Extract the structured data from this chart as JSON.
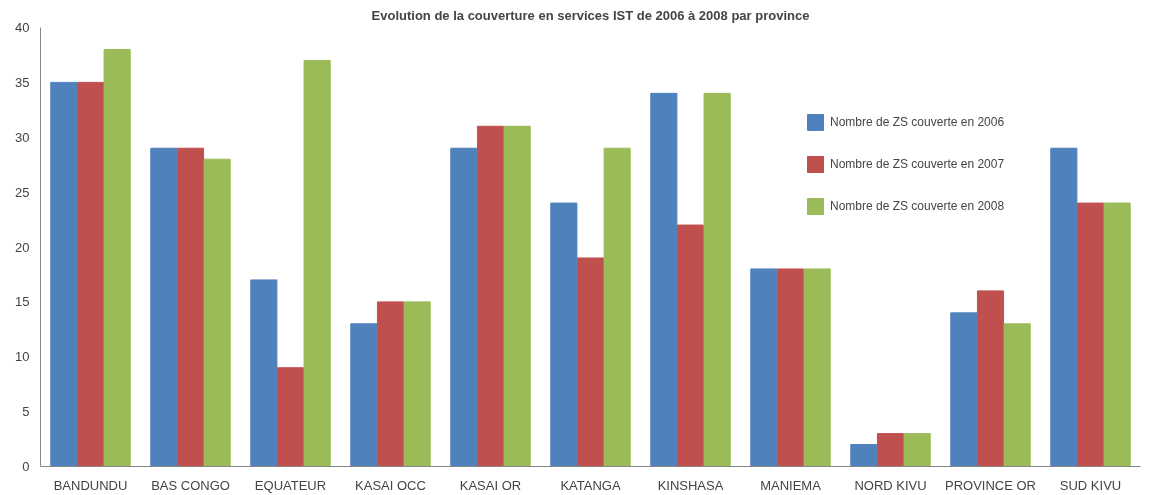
{
  "chart_data": {
    "type": "bar",
    "title": "Evolution de la couverture en services IST de 2006 à 2008 par province",
    "categories": [
      "BANDUNDU",
      "BAS CONGO",
      "EQUATEUR",
      "KASAI OCC",
      "KASAI OR",
      "KATANGA",
      "KINSHASA",
      "MANIEMA",
      "NORD KIVU",
      "PROVINCE OR",
      "SUD KIVU"
    ],
    "series": [
      {
        "name": "Nombre de ZS couverte en 2006",
        "color": "#4f81bd",
        "values": [
          35,
          29,
          17,
          13,
          29,
          24,
          34,
          18,
          2,
          14,
          29
        ]
      },
      {
        "name": "Nombre de ZS couverte en 2007",
        "color": "#c0504d",
        "values": [
          35,
          29,
          9,
          15,
          31,
          19,
          22,
          18,
          3,
          16,
          24
        ]
      },
      {
        "name": "Nombre de ZS couverte en 2008",
        "color": "#9bbb59",
        "values": [
          38,
          28,
          37,
          15,
          31,
          29,
          34,
          18,
          3,
          13,
          24
        ]
      }
    ],
    "ylim": [
      0,
      40
    ],
    "yticks": [
      0,
      5,
      10,
      15,
      20,
      25,
      30,
      35,
      40
    ],
    "grid": false,
    "legend": "top right"
  }
}
